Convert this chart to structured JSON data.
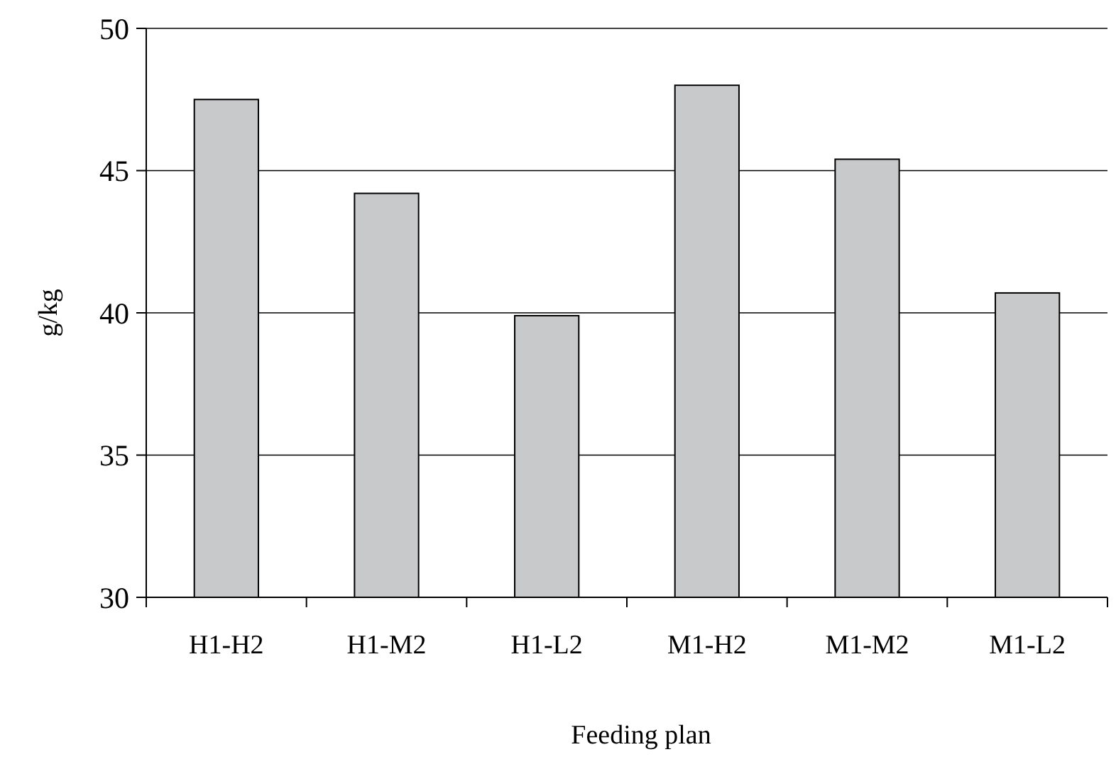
{
  "chart_data": {
    "type": "bar",
    "xlabel": "Feeding plan",
    "ylabel": "g/kg",
    "categories": [
      "H1-H2",
      "H1-M2",
      "H1-L2",
      "M1-H2",
      "M1-M2",
      "M1-L2"
    ],
    "values": [
      47.5,
      44.2,
      39.9,
      48.0,
      45.4,
      40.7
    ],
    "color": "#c8c9cb",
    "ylim": [
      30,
      50
    ],
    "yticks": [
      30,
      35,
      40,
      45,
      50
    ],
    "grid": "y"
  }
}
